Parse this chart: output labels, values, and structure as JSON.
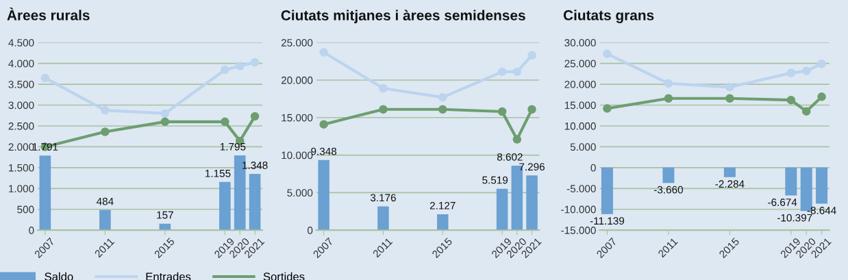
{
  "chart_data": [
    {
      "type": "bar",
      "title": "Àrees rurals",
      "x": [
        2007,
        2011,
        2015,
        2019,
        2020,
        2021
      ],
      "series": [
        {
          "name": "Saldo",
          "color": "#6aa0d2",
          "values": [
            1791,
            484,
            157,
            1155,
            1795,
            1348
          ],
          "value_labels": [
            "1.791",
            "484",
            "157",
            "1.155",
            "1.795",
            "1.348"
          ]
        },
        {
          "name": "Entrades",
          "type": "line",
          "color": "#bcd4ee",
          "values": [
            3650,
            2875,
            2800,
            3845,
            3935,
            4025
          ]
        },
        {
          "name": "Sortides",
          "type": "line",
          "color": "#6e9e70",
          "values": [
            2000,
            2360,
            2600,
            2600,
            2140,
            2730
          ]
        }
      ],
      "xlim": [
        2006.5,
        2021.5
      ],
      "xticks": [
        2007,
        2011,
        2015,
        2019,
        2020,
        2021
      ],
      "ylim": [
        0,
        4500
      ],
      "yticks": [
        0,
        500,
        {
          "value": 1000,
          "label": "1.000"
        },
        {
          "value": 1500,
          "label": "1.500"
        },
        {
          "value": 2000,
          "label": "2.000"
        },
        {
          "value": 2500,
          "label": "2.500"
        },
        {
          "value": 3000,
          "label": "3.000"
        },
        {
          "value": 3500,
          "label": "3.500"
        },
        {
          "value": 4000,
          "label": "4.000"
        },
        {
          "value": 4500,
          "label": "4.500"
        }
      ],
      "grid": "y",
      "marker": "circle",
      "legend": "bottom"
    },
    {
      "type": "bar",
      "title": "Ciutats mitjanes i àrees semidenses",
      "x": [
        2007,
        2011,
        2015,
        2019,
        2020,
        2021
      ],
      "series": [
        {
          "color": "#6aa0d2",
          "values": [
            9348,
            3176,
            2127,
            5519,
            8602,
            7296
          ],
          "value_labels": [
            "9.348",
            "3.176",
            "2.127",
            "5.519",
            "8.602",
            "7.296"
          ]
        },
        {
          "type": "line",
          "color": "#bcd4ee",
          "values": [
            23700,
            18900,
            17700,
            21100,
            21100,
            23300
          ]
        },
        {
          "type": "line",
          "color": "#6e9e70",
          "values": [
            14100,
            16100,
            16100,
            15800,
            12100,
            16100
          ]
        }
      ],
      "xlim": [
        2006.5,
        2021.5
      ],
      "xticks": [
        2007,
        2011,
        2015,
        2019,
        2020,
        2021
      ],
      "ylim": [
        0,
        25000
      ],
      "yticks": [
        0,
        {
          "value": 5000,
          "label": "5.000"
        },
        {
          "value": 10000,
          "label": "10.000"
        },
        {
          "value": 15000,
          "label": "15.000"
        },
        {
          "value": 20000,
          "label": "20.000"
        },
        {
          "value": 25000,
          "label": "25.000"
        }
      ],
      "grid": "y",
      "marker": "circle"
    },
    {
      "type": "bar",
      "title": "Ciutats grans",
      "x": [
        2007,
        2011,
        2015,
        2019,
        2020,
        2021
      ],
      "series": [
        {
          "color": "#6aa0d2",
          "values": [
            -11139,
            -3660,
            -2284,
            -6674,
            -10397,
            -8644
          ],
          "value_labels": [
            "-11.139",
            "-3.660",
            "-2.284",
            "-6.674",
            "-10.397",
            "-8.644"
          ]
        },
        {
          "type": "line",
          "color": "#bcd4ee",
          "values": [
            27300,
            20200,
            19300,
            22700,
            23200,
            24900
          ]
        },
        {
          "type": "line",
          "color": "#6e9e70",
          "values": [
            14200,
            16600,
            16600,
            16200,
            13500,
            17000
          ]
        }
      ],
      "xlim": [
        2006.5,
        2021.5
      ],
      "xticks": [
        2007,
        2011,
        2015,
        2019,
        2020,
        2021
      ],
      "ylim": [
        -15000,
        30000
      ],
      "yticks": [
        {
          "value": -15000,
          "label": "-15.000"
        },
        {
          "value": -10000,
          "label": "-10.000"
        },
        {
          "value": -5000,
          "label": "-5.000"
        },
        0,
        {
          "value": 5000,
          "label": "5.000"
        },
        {
          "value": 10000,
          "label": "10.000"
        },
        {
          "value": 15000,
          "label": "15.000"
        },
        {
          "value": 20000,
          "label": "20.000"
        },
        {
          "value": 25000,
          "label": "25.000"
        },
        {
          "value": 30000,
          "label": "30.000"
        }
      ],
      "grid": "y",
      "marker": "circle"
    }
  ]
}
